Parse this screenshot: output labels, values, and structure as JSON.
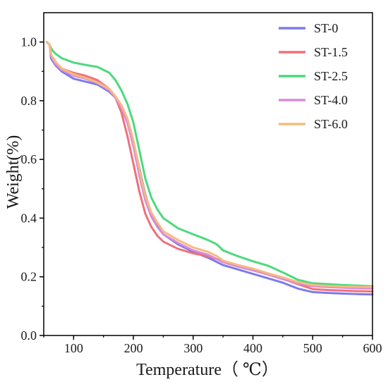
{
  "chart_data": {
    "type": "line",
    "title": "",
    "xlabel": "Temperature（ ℃）",
    "ylabel": "Weight(%)",
    "xlim": [
      50,
      600
    ],
    "ylim": [
      0.0,
      1.1
    ],
    "x_ticks": [
      100,
      200,
      300,
      400,
      500,
      600
    ],
    "y_ticks": [
      0.0,
      0.2,
      0.4,
      0.6,
      0.8,
      1.0
    ],
    "x_tick_labels": [
      "100",
      "200",
      "300",
      "400",
      "500",
      "600"
    ],
    "y_tick_labels": [
      "0.0",
      "0.2",
      "0.4",
      "0.6",
      "0.8",
      "1.0"
    ],
    "grid": false,
    "legend_position": "top-right",
    "x": [
      55,
      60,
      62,
      65,
      70,
      80,
      100,
      120,
      140,
      160,
      170,
      180,
      190,
      200,
      210,
      220,
      230,
      240,
      250,
      275,
      300,
      325,
      340,
      350,
      375,
      400,
      425,
      450,
      475,
      500,
      525,
      550,
      575,
      600
    ],
    "series": [
      {
        "name": "ST-0",
        "color": "#7b7bea",
        "values": [
          1.0,
          0.99,
          0.945,
          0.935,
          0.92,
          0.9,
          0.875,
          0.865,
          0.855,
          0.83,
          0.81,
          0.775,
          0.73,
          0.66,
          0.57,
          0.48,
          0.415,
          0.375,
          0.345,
          0.31,
          0.285,
          0.265,
          0.25,
          0.24,
          0.225,
          0.21,
          0.195,
          0.18,
          0.16,
          0.148,
          0.145,
          0.143,
          0.141,
          0.14
        ]
      },
      {
        "name": "ST-1.5",
        "color": "#f0707c",
        "values": [
          1.0,
          0.99,
          0.96,
          0.945,
          0.93,
          0.91,
          0.895,
          0.885,
          0.87,
          0.84,
          0.81,
          0.76,
          0.68,
          0.585,
          0.49,
          0.415,
          0.37,
          0.34,
          0.32,
          0.295,
          0.28,
          0.27,
          0.26,
          0.25,
          0.235,
          0.222,
          0.208,
          0.193,
          0.175,
          0.158,
          0.155,
          0.153,
          0.151,
          0.15
        ]
      },
      {
        "name": "ST-2.5",
        "color": "#4dd97e",
        "values": [
          1.0,
          0.99,
          0.98,
          0.97,
          0.96,
          0.945,
          0.93,
          0.922,
          0.915,
          0.895,
          0.87,
          0.835,
          0.79,
          0.725,
          0.63,
          0.535,
          0.47,
          0.43,
          0.4,
          0.365,
          0.345,
          0.325,
          0.31,
          0.29,
          0.27,
          0.253,
          0.238,
          0.215,
          0.19,
          0.178,
          0.175,
          0.172,
          0.17,
          0.168
        ]
      },
      {
        "name": "ST-4.0",
        "color": "#d98ad9",
        "values": [
          1.0,
          0.99,
          0.955,
          0.94,
          0.925,
          0.905,
          0.885,
          0.875,
          0.86,
          0.835,
          0.81,
          0.775,
          0.725,
          0.645,
          0.545,
          0.46,
          0.405,
          0.37,
          0.345,
          0.315,
          0.29,
          0.275,
          0.26,
          0.25,
          0.235,
          0.222,
          0.208,
          0.192,
          0.178,
          0.168,
          0.165,
          0.163,
          0.161,
          0.16
        ]
      },
      {
        "name": "ST-6.0",
        "color": "#f5bb80",
        "values": [
          1.0,
          0.99,
          0.96,
          0.948,
          0.932,
          0.91,
          0.89,
          0.878,
          0.862,
          0.84,
          0.815,
          0.785,
          0.74,
          0.665,
          0.565,
          0.475,
          0.42,
          0.385,
          0.355,
          0.325,
          0.3,
          0.285,
          0.27,
          0.255,
          0.24,
          0.228,
          0.212,
          0.198,
          0.182,
          0.172,
          0.169,
          0.167,
          0.166,
          0.165
        ]
      }
    ]
  }
}
